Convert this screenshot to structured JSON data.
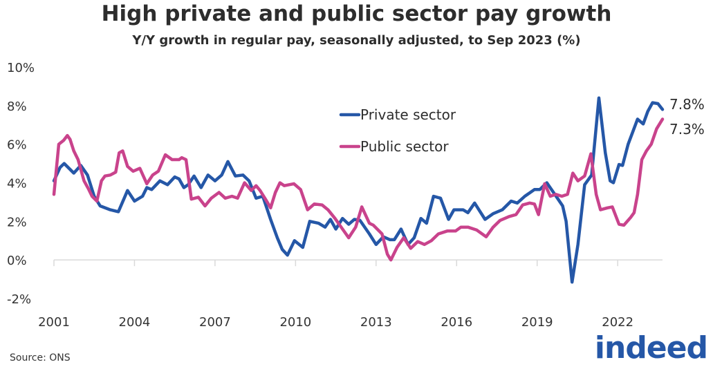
{
  "chart_data": {
    "type": "line",
    "title": "High private and public sector pay growth",
    "subtitle": "Y/Y growth in regular pay, seasonally adjusted, to Sep 2023 (%)",
    "xlabel": "",
    "ylabel": "",
    "xlim": [
      2001,
      2023.67
    ],
    "ylim": [
      -2,
      10
    ],
    "yticks": [
      -2,
      0,
      2,
      4,
      6,
      8,
      10
    ],
    "ytick_labels": [
      "-2%",
      "0%",
      "2%",
      "4%",
      "6%",
      "8%",
      "10%"
    ],
    "xticks": [
      2001,
      2004,
      2007,
      2010,
      2013,
      2016,
      2019,
      2022
    ],
    "xtick_labels": [
      "2001",
      "2004",
      "2007",
      "2010",
      "2013",
      "2016",
      "2019",
      "2022"
    ],
    "grid": false,
    "legend_placement": "top-center",
    "series": [
      {
        "name": "Private sector",
        "color": "#2557a7",
        "end_label": "7.8%",
        "points": [
          [
            2001.0,
            4.1
          ],
          [
            2001.23,
            4.8
          ],
          [
            2001.38,
            5.0
          ],
          [
            2001.74,
            4.5
          ],
          [
            2002.0,
            4.9
          ],
          [
            2002.25,
            4.4
          ],
          [
            2002.5,
            3.3
          ],
          [
            2002.72,
            2.8
          ],
          [
            2003.1,
            2.6
          ],
          [
            2003.4,
            2.5
          ],
          [
            2003.74,
            3.6
          ],
          [
            2004.0,
            3.05
          ],
          [
            2004.3,
            3.3
          ],
          [
            2004.46,
            3.75
          ],
          [
            2004.64,
            3.65
          ],
          [
            2004.95,
            4.1
          ],
          [
            2005.23,
            3.9
          ],
          [
            2005.5,
            4.3
          ],
          [
            2005.66,
            4.2
          ],
          [
            2005.84,
            3.75
          ],
          [
            2006.0,
            3.9
          ],
          [
            2006.22,
            4.35
          ],
          [
            2006.48,
            3.75
          ],
          [
            2006.74,
            4.4
          ],
          [
            2007.0,
            4.1
          ],
          [
            2007.25,
            4.4
          ],
          [
            2007.48,
            5.1
          ],
          [
            2007.76,
            4.35
          ],
          [
            2008.04,
            4.4
          ],
          [
            2008.27,
            4.1
          ],
          [
            2008.53,
            3.2
          ],
          [
            2008.78,
            3.3
          ],
          [
            2009.07,
            2.1
          ],
          [
            2009.32,
            1.15
          ],
          [
            2009.5,
            0.55
          ],
          [
            2009.7,
            0.25
          ],
          [
            2009.96,
            1.0
          ],
          [
            2010.27,
            0.65
          ],
          [
            2010.53,
            2.0
          ],
          [
            2010.86,
            1.9
          ],
          [
            2011.1,
            1.7
          ],
          [
            2011.3,
            2.1
          ],
          [
            2011.5,
            1.6
          ],
          [
            2011.75,
            2.15
          ],
          [
            2011.98,
            1.85
          ],
          [
            2012.19,
            2.1
          ],
          [
            2012.4,
            2.05
          ],
          [
            2012.75,
            1.35
          ],
          [
            2013.0,
            0.8
          ],
          [
            2013.27,
            1.2
          ],
          [
            2013.52,
            1.05
          ],
          [
            2013.68,
            1.05
          ],
          [
            2013.93,
            1.6
          ],
          [
            2014.19,
            0.8
          ],
          [
            2014.42,
            1.15
          ],
          [
            2014.67,
            2.15
          ],
          [
            2014.88,
            1.9
          ],
          [
            2015.14,
            3.3
          ],
          [
            2015.4,
            3.2
          ],
          [
            2015.7,
            2.1
          ],
          [
            2015.9,
            2.6
          ],
          [
            2016.24,
            2.6
          ],
          [
            2016.42,
            2.45
          ],
          [
            2016.67,
            2.95
          ],
          [
            2017.06,
            2.1
          ],
          [
            2017.36,
            2.4
          ],
          [
            2017.7,
            2.6
          ],
          [
            2018.03,
            3.05
          ],
          [
            2018.26,
            2.95
          ],
          [
            2018.54,
            3.3
          ],
          [
            2018.9,
            3.65
          ],
          [
            2019.1,
            3.65
          ],
          [
            2019.36,
            4.0
          ],
          [
            2019.66,
            3.4
          ],
          [
            2019.95,
            2.8
          ],
          [
            2020.08,
            2.0
          ],
          [
            2020.3,
            -1.15
          ],
          [
            2020.52,
            0.8
          ],
          [
            2020.77,
            3.9
          ],
          [
            2021.03,
            4.4
          ],
          [
            2021.3,
            8.4
          ],
          [
            2021.54,
            5.55
          ],
          [
            2021.72,
            4.1
          ],
          [
            2021.84,
            4.0
          ],
          [
            2022.05,
            4.95
          ],
          [
            2022.18,
            4.9
          ],
          [
            2022.39,
            6.0
          ],
          [
            2022.74,
            7.3
          ],
          [
            2022.95,
            7.05
          ],
          [
            2023.12,
            7.7
          ],
          [
            2023.3,
            8.15
          ],
          [
            2023.5,
            8.1
          ],
          [
            2023.67,
            7.8
          ]
        ]
      },
      {
        "name": "Public sector",
        "color": "#c9438c",
        "end_label": "7.3%",
        "points": [
          [
            2001.0,
            3.4
          ],
          [
            2001.18,
            6.0
          ],
          [
            2001.36,
            6.2
          ],
          [
            2001.5,
            6.45
          ],
          [
            2001.6,
            6.25
          ],
          [
            2001.74,
            5.65
          ],
          [
            2001.9,
            5.2
          ],
          [
            2002.12,
            4.1
          ],
          [
            2002.28,
            3.7
          ],
          [
            2002.42,
            3.3
          ],
          [
            2002.6,
            3.05
          ],
          [
            2002.77,
            4.1
          ],
          [
            2002.9,
            4.35
          ],
          [
            2003.1,
            4.4
          ],
          [
            2003.3,
            4.55
          ],
          [
            2003.43,
            5.55
          ],
          [
            2003.56,
            5.65
          ],
          [
            2003.74,
            4.85
          ],
          [
            2003.95,
            4.6
          ],
          [
            2004.2,
            4.75
          ],
          [
            2004.46,
            3.95
          ],
          [
            2004.68,
            4.4
          ],
          [
            2004.89,
            4.6
          ],
          [
            2005.15,
            5.45
          ],
          [
            2005.4,
            5.2
          ],
          [
            2005.66,
            5.2
          ],
          [
            2005.76,
            5.3
          ],
          [
            2005.92,
            5.2
          ],
          [
            2006.12,
            3.15
          ],
          [
            2006.38,
            3.25
          ],
          [
            2006.63,
            2.8
          ],
          [
            2006.86,
            3.2
          ],
          [
            2007.15,
            3.5
          ],
          [
            2007.38,
            3.2
          ],
          [
            2007.63,
            3.3
          ],
          [
            2007.84,
            3.2
          ],
          [
            2008.1,
            4.0
          ],
          [
            2008.35,
            3.6
          ],
          [
            2008.53,
            3.85
          ],
          [
            2008.68,
            3.6
          ],
          [
            2008.9,
            3.1
          ],
          [
            2009.07,
            2.7
          ],
          [
            2009.25,
            3.5
          ],
          [
            2009.42,
            4.0
          ],
          [
            2009.58,
            3.85
          ],
          [
            2009.94,
            3.95
          ],
          [
            2010.19,
            3.65
          ],
          [
            2010.45,
            2.6
          ],
          [
            2010.7,
            2.9
          ],
          [
            2010.99,
            2.85
          ],
          [
            2011.21,
            2.6
          ],
          [
            2011.47,
            2.15
          ],
          [
            2011.75,
            1.6
          ],
          [
            2011.98,
            1.15
          ],
          [
            2012.24,
            1.7
          ],
          [
            2012.47,
            2.75
          ],
          [
            2012.75,
            1.9
          ],
          [
            2012.9,
            1.8
          ],
          [
            2013.22,
            1.35
          ],
          [
            2013.42,
            0.3
          ],
          [
            2013.55,
            0.0
          ],
          [
            2013.78,
            0.65
          ],
          [
            2014.03,
            1.15
          ],
          [
            2014.29,
            0.6
          ],
          [
            2014.55,
            0.95
          ],
          [
            2014.8,
            0.8
          ],
          [
            2015.06,
            1.0
          ],
          [
            2015.32,
            1.35
          ],
          [
            2015.65,
            1.5
          ],
          [
            2015.96,
            1.5
          ],
          [
            2016.16,
            1.7
          ],
          [
            2016.42,
            1.7
          ],
          [
            2016.75,
            1.55
          ],
          [
            2017.1,
            1.2
          ],
          [
            2017.36,
            1.7
          ],
          [
            2017.62,
            2.05
          ],
          [
            2017.95,
            2.25
          ],
          [
            2018.21,
            2.35
          ],
          [
            2018.46,
            2.85
          ],
          [
            2018.72,
            2.95
          ],
          [
            2018.9,
            2.9
          ],
          [
            2019.05,
            2.35
          ],
          [
            2019.28,
            3.95
          ],
          [
            2019.49,
            3.3
          ],
          [
            2019.7,
            3.4
          ],
          [
            2019.92,
            3.3
          ],
          [
            2020.13,
            3.4
          ],
          [
            2020.33,
            4.5
          ],
          [
            2020.52,
            4.1
          ],
          [
            2020.77,
            4.35
          ],
          [
            2021.0,
            5.5
          ],
          [
            2021.2,
            3.4
          ],
          [
            2021.36,
            2.6
          ],
          [
            2021.62,
            2.7
          ],
          [
            2021.8,
            2.75
          ],
          [
            2022.05,
            1.85
          ],
          [
            2022.23,
            1.8
          ],
          [
            2022.48,
            2.2
          ],
          [
            2022.61,
            2.45
          ],
          [
            2022.74,
            3.4
          ],
          [
            2022.9,
            5.2
          ],
          [
            2023.07,
            5.65
          ],
          [
            2023.25,
            6.0
          ],
          [
            2023.45,
            6.8
          ],
          [
            2023.67,
            7.3
          ]
        ]
      }
    ]
  },
  "footer": {
    "source": "Source: ONS",
    "logo": "indeed"
  }
}
